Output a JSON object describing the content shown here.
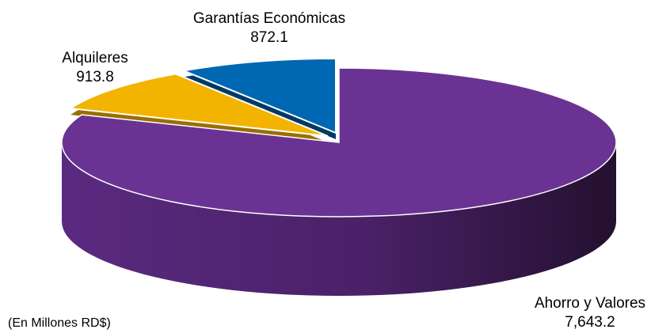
{
  "chart_data": {
    "type": "pie",
    "title": "",
    "unit_note": "(En Millones RD$)",
    "slices": [
      {
        "label": "Ahorro y Valores",
        "value": 7643.2,
        "value_label": "7,643.2",
        "color": "#6a3393"
      },
      {
        "label": "Alquileres",
        "value": 913.8,
        "value_label": "913.8",
        "color": "#f2b400"
      },
      {
        "label": "Garantías Económicas",
        "value": 872.1,
        "value_label": "872.1",
        "color": "#0067b2"
      }
    ],
    "style": "3d-exploded",
    "legend": "none"
  }
}
